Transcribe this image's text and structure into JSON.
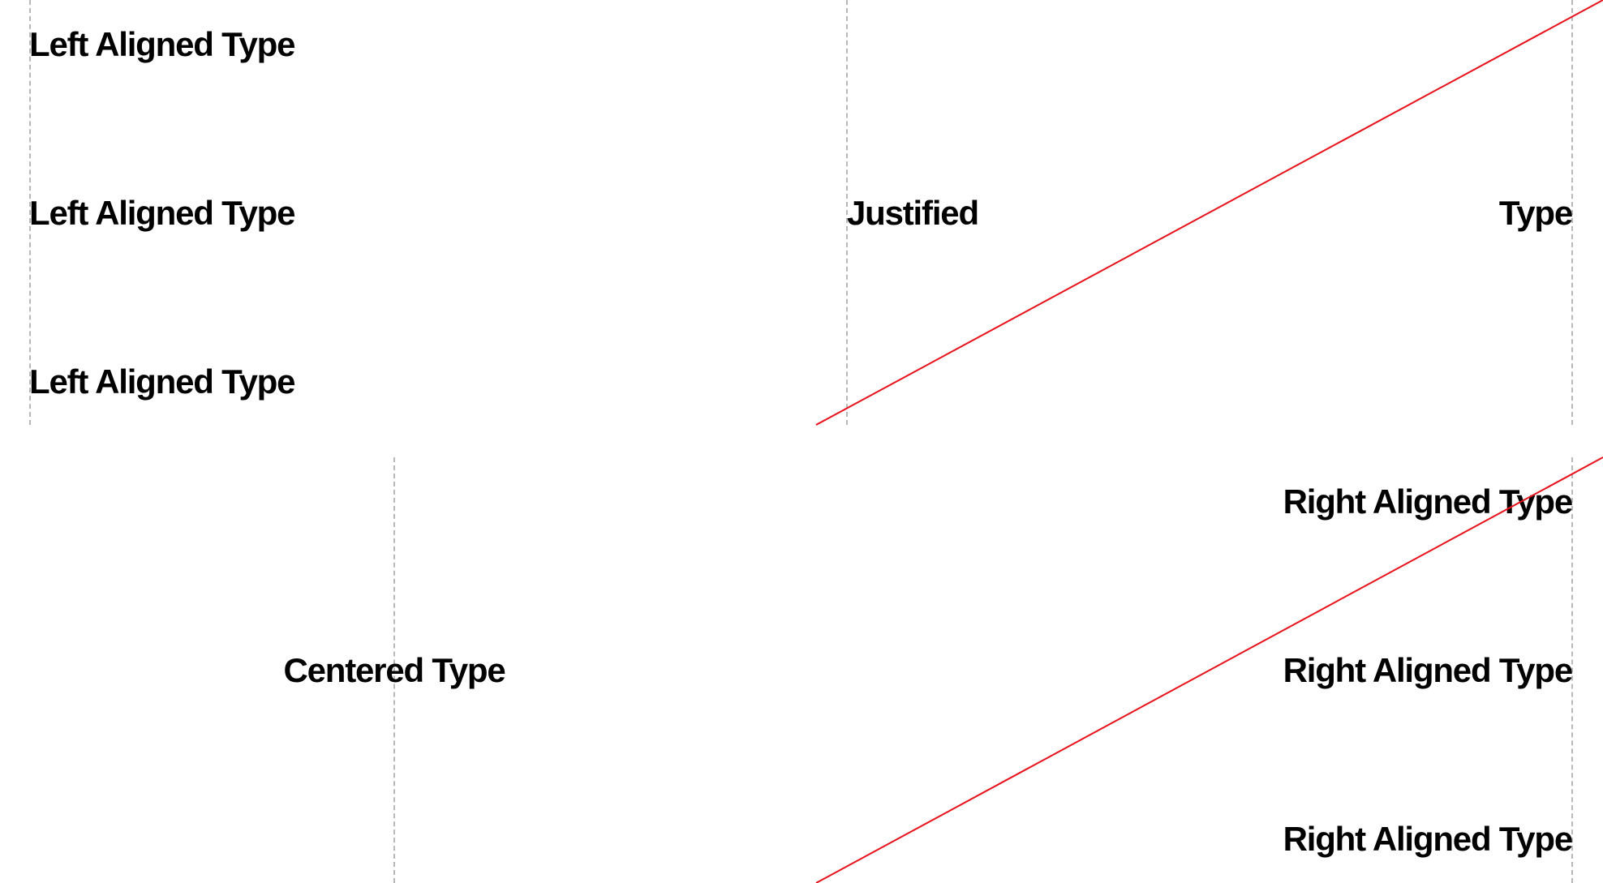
{
  "colors": {
    "guide": "#b8b8b8",
    "accent": "#e8111a",
    "text": "#000000"
  },
  "left_block": {
    "lines": [
      "Left Aligned Type",
      "Left Aligned Type",
      "Left Aligned Type"
    ]
  },
  "justified_block": {
    "words": [
      "Justified",
      "Type"
    ]
  },
  "centered_block": {
    "line": "Centered Type"
  },
  "right_block": {
    "lines": [
      "Right Aligned Type",
      "Right Aligned Type",
      "Right Aligned Type"
    ]
  }
}
